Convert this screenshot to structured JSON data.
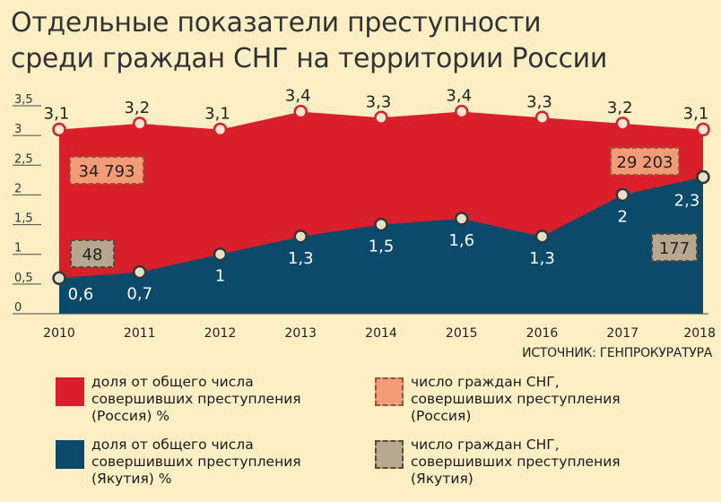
{
  "title_line1": "Отдельные показатели преступности",
  "title_line2": "среди граждан СНГ на территории России",
  "source": "ИСТОЧНИК: ГЕНПРОКУРАТУРА",
  "colors": {
    "russia": "#d9202a",
    "yakutia": "#0b4a6a",
    "russia_count": "#f39a76",
    "yakutia_count": "#b5a790",
    "background": "#fdeec4"
  },
  "chart_data": {
    "type": "area",
    "x": [
      "2010",
      "2011",
      "2012",
      "2013",
      "2014",
      "2015",
      "2016",
      "2017",
      "2018"
    ],
    "ylim": [
      0,
      3.5
    ],
    "yticks": [
      "0",
      "0,5",
      "1",
      "1,5",
      "2",
      "2,5",
      "3",
      "3,5"
    ],
    "grid": false,
    "series": [
      {
        "name": "доля от общего числа совершивших преступления (Россия) %",
        "values": [
          3.1,
          3.2,
          3.1,
          3.4,
          3.3,
          3.4,
          3.3,
          3.2,
          3.1
        ],
        "labels": [
          "3,1",
          "3,2",
          "3,1",
          "3,4",
          "3,3",
          "3,4",
          "3,3",
          "3,2",
          "3,1"
        ]
      },
      {
        "name": "доля от общего числа совершивших преступления (Якутия) %",
        "values": [
          0.6,
          0.7,
          1,
          1.3,
          1.5,
          1.6,
          1.3,
          2,
          2.3
        ],
        "labels": [
          "0,6",
          "0,7",
          "1",
          "1,3",
          "1,5",
          "1,6",
          "1,3",
          "2",
          "2,3"
        ]
      }
    ],
    "annotations": [
      {
        "series": "число граждан СНГ, совершивших преступления (Россия)",
        "year": "2010",
        "value": 34793,
        "text": "34 793"
      },
      {
        "series": "число граждан СНГ, совершивших преступления (Россия)",
        "year": "2018",
        "value": 29203,
        "text": "29 203"
      },
      {
        "series": "число граждан СНГ, совершивших преступления (Якутия)",
        "year": "2010",
        "value": 48,
        "text": "48"
      },
      {
        "series": "число граждан СНГ, совершивших преступления (Якутия)",
        "year": "2018",
        "value": 177,
        "text": "177"
      }
    ]
  },
  "legend": [
    {
      "text": "доля от общего числа\nсовершивших преступления\n(Россия) %"
    },
    {
      "text": "доля от общего числа\nсовершивших преступления\n(Якутия) %"
    },
    {
      "text": "число граждан СНГ,\nсовершивших преступления\n(Россия)"
    },
    {
      "text": "число граждан СНГ,\nсовершивших преступления\n(Якутия)"
    }
  ]
}
